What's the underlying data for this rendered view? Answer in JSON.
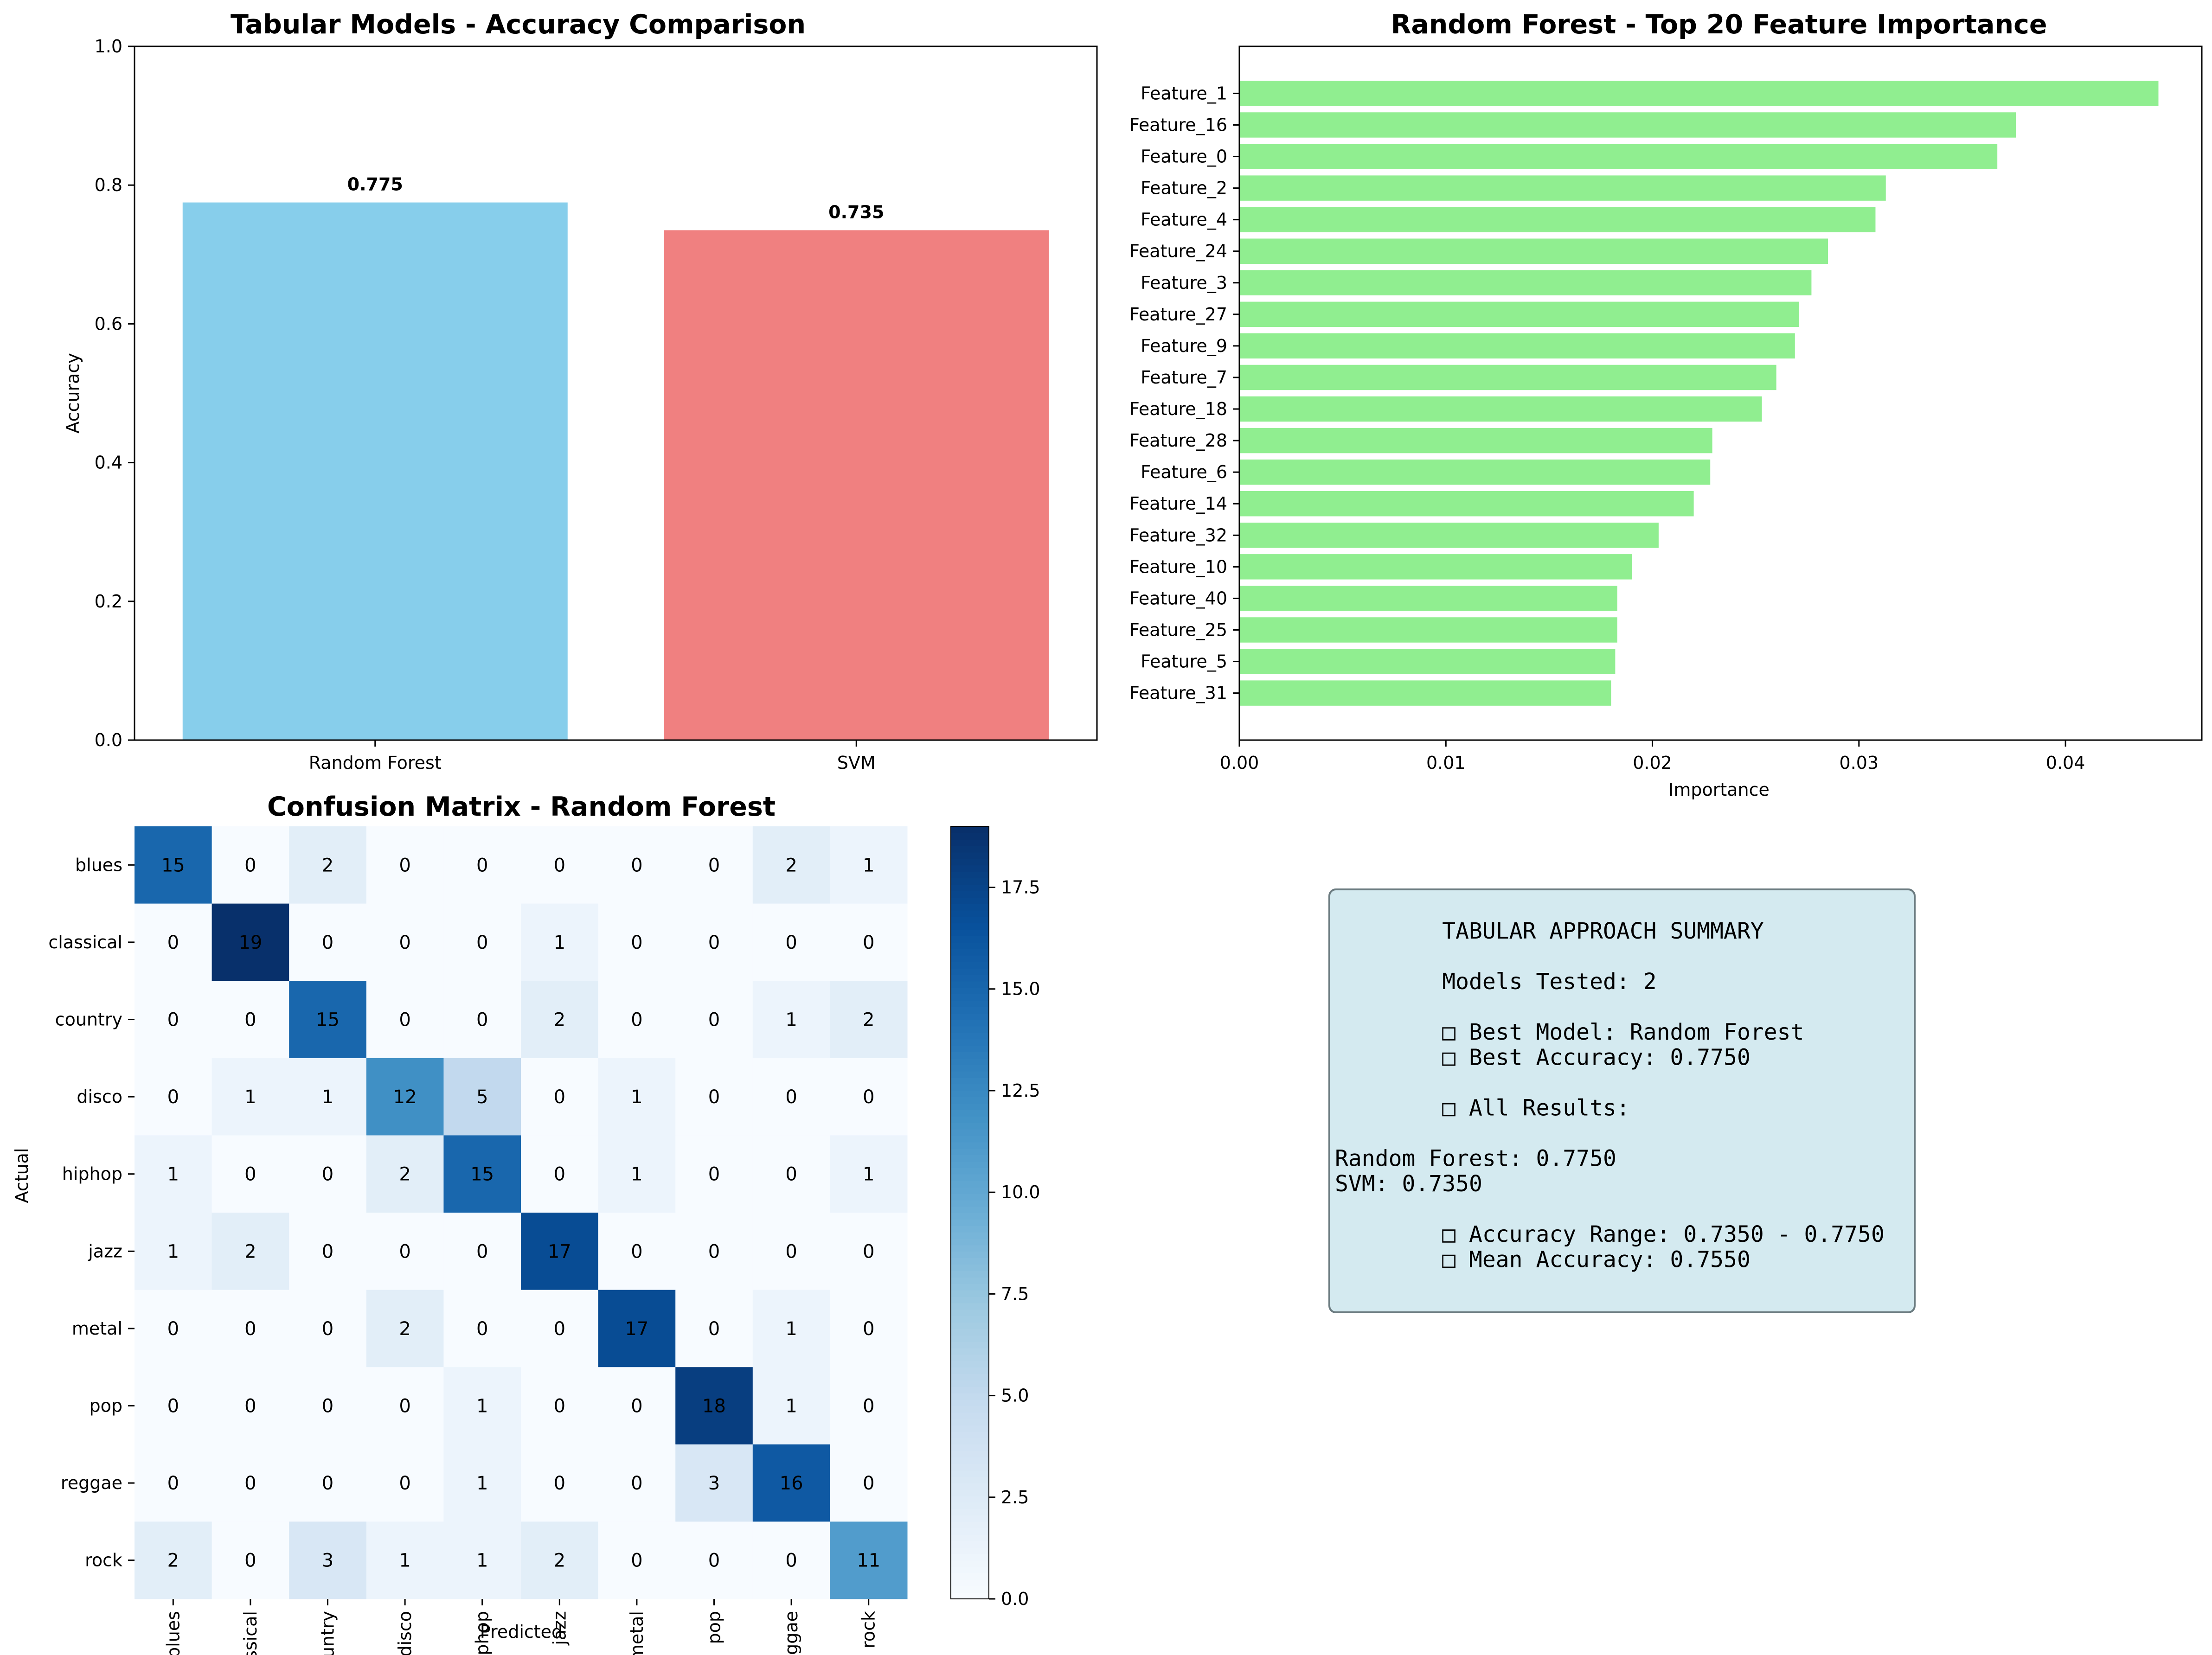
{
  "chart_data": [
    {
      "type": "bar",
      "title": "Tabular Models - Accuracy Comparison",
      "xlabel": "",
      "ylabel": "Accuracy",
      "categories": [
        "Random Forest",
        "SVM"
      ],
      "values": [
        0.775,
        0.735
      ],
      "value_labels": [
        "0.775",
        "0.735"
      ],
      "ylim": [
        0,
        1.0
      ],
      "yticks": [
        "0.0",
        "0.2",
        "0.4",
        "0.6",
        "0.8",
        "1.0"
      ],
      "colors": [
        "#87ceeb",
        "#f08080"
      ],
      "grid": false
    },
    {
      "type": "bar",
      "orientation": "horizontal",
      "title": "Random Forest - Top 20 Feature Importance",
      "xlabel": "Importance",
      "ylabel": "",
      "categories": [
        "Feature_1",
        "Feature_16",
        "Feature_0",
        "Feature_2",
        "Feature_4",
        "Feature_24",
        "Feature_3",
        "Feature_27",
        "Feature_9",
        "Feature_7",
        "Feature_18",
        "Feature_28",
        "Feature_6",
        "Feature_14",
        "Feature_32",
        "Feature_10",
        "Feature_40",
        "Feature_25",
        "Feature_5",
        "Feature_31"
      ],
      "values": [
        0.0445,
        0.0376,
        0.0367,
        0.0313,
        0.0308,
        0.0285,
        0.0277,
        0.0271,
        0.0269,
        0.026,
        0.0253,
        0.0229,
        0.0228,
        0.022,
        0.0203,
        0.019,
        0.0183,
        0.0183,
        0.0182,
        0.018
      ],
      "xlim": [
        0,
        0.0466
      ],
      "xticks": [
        "0.00",
        "0.01",
        "0.02",
        "0.03",
        "0.04"
      ],
      "color": "#90ee90",
      "grid": false
    },
    {
      "type": "heatmap",
      "title": "Confusion Matrix - Random Forest",
      "xlabel": "Predicted",
      "ylabel": "Actual",
      "labels": [
        "blues",
        "classical",
        "country",
        "disco",
        "hiphop",
        "jazz",
        "metal",
        "pop",
        "reggae",
        "rock"
      ],
      "matrix": [
        [
          15,
          0,
          2,
          0,
          0,
          0,
          0,
          0,
          2,
          1
        ],
        [
          0,
          19,
          0,
          0,
          0,
          1,
          0,
          0,
          0,
          0
        ],
        [
          0,
          0,
          15,
          0,
          0,
          2,
          0,
          0,
          1,
          2
        ],
        [
          0,
          1,
          1,
          12,
          5,
          0,
          1,
          0,
          0,
          0
        ],
        [
          1,
          0,
          0,
          2,
          15,
          0,
          1,
          0,
          0,
          1
        ],
        [
          1,
          2,
          0,
          0,
          0,
          17,
          0,
          0,
          0,
          0
        ],
        [
          0,
          0,
          0,
          2,
          0,
          0,
          17,
          0,
          1,
          0
        ],
        [
          0,
          0,
          0,
          0,
          1,
          0,
          0,
          18,
          1,
          0
        ],
        [
          0,
          0,
          0,
          0,
          1,
          0,
          0,
          3,
          16,
          0
        ],
        [
          2,
          0,
          3,
          1,
          1,
          2,
          0,
          0,
          0,
          11
        ]
      ],
      "colorbar_range": [
        0,
        19
      ],
      "colorbar_ticks": [
        "0.0",
        "2.5",
        "5.0",
        "7.5",
        "10.0",
        "12.5",
        "15.0",
        "17.5"
      ],
      "colormap": "Blues"
    }
  ],
  "summary": {
    "lines": [
      "        TABULAR APPROACH SUMMARY",
      "",
      "        Models Tested: 2",
      "",
      "        □ Best Model: Random Forest",
      "        □ Best Accuracy: 0.7750",
      "",
      "        □ All Results:",
      "",
      "Random Forest: 0.7750",
      "SVM: 0.7350",
      "",
      "        □ Accuracy Range: 0.7350 - 0.7750",
      "        □ Mean Accuracy: 0.7550"
    ],
    "box_color": "#d4eaf0",
    "border_color": "#6b7b80"
  }
}
